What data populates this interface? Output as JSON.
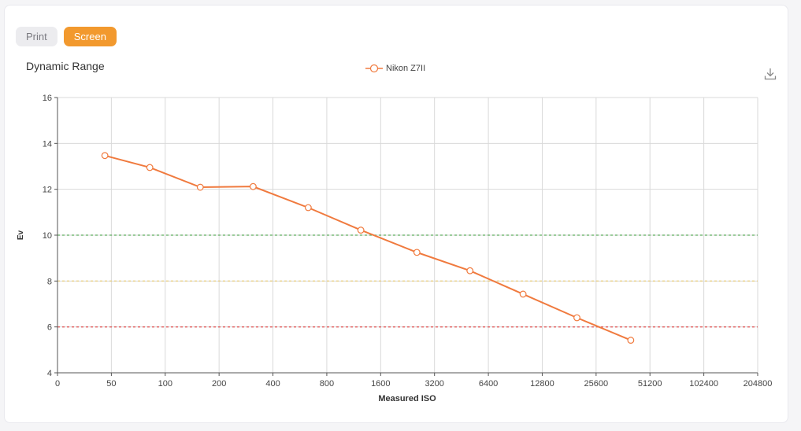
{
  "tabs": [
    {
      "label": "Print",
      "active": false
    },
    {
      "label": "Screen",
      "active": true
    }
  ],
  "download_icon": "download-icon",
  "colors": {
    "series": "#f07a3e",
    "accent": "#f2992e",
    "line_green": "#5fae5f",
    "line_yellow": "#e8cf86",
    "line_red": "#e05a5a"
  },
  "chart_data": {
    "type": "line",
    "title": "Dynamic Range",
    "xlabel": "Measured ISO",
    "ylabel": "Ev",
    "x_categories": [
      "0",
      "50",
      "100",
      "200",
      "400",
      "800",
      "1600",
      "3200",
      "6400",
      "12800",
      "25600",
      "51200",
      "102400",
      "204800"
    ],
    "y_ticks": [
      "4",
      "6",
      "8",
      "10",
      "12",
      "14",
      "16"
    ],
    "ylim": [
      4,
      16
    ],
    "grid": true,
    "legend_position": "top-center",
    "reference_lines": [
      {
        "y": 10,
        "color": "#5fae5f",
        "style": "dashed"
      },
      {
        "y": 8,
        "color": "#e8cf86",
        "style": "dashed"
      },
      {
        "y": 6,
        "color": "#e05a5a",
        "style": "dashed"
      }
    ],
    "series": [
      {
        "name": "Nikon Z7II",
        "points": [
          {
            "iso": 46,
            "ev": 13.47
          },
          {
            "iso": 82,
            "ev": 12.95
          },
          {
            "iso": 157,
            "ev": 12.09
          },
          {
            "iso": 310,
            "ev": 12.12
          },
          {
            "iso": 630,
            "ev": 11.2
          },
          {
            "iso": 1240,
            "ev": 10.22
          },
          {
            "iso": 2550,
            "ev": 9.25
          },
          {
            "iso": 5050,
            "ev": 8.45
          },
          {
            "iso": 10000,
            "ev": 7.43
          },
          {
            "iso": 20000,
            "ev": 6.4
          },
          {
            "iso": 40000,
            "ev": 5.42
          }
        ]
      }
    ]
  }
}
